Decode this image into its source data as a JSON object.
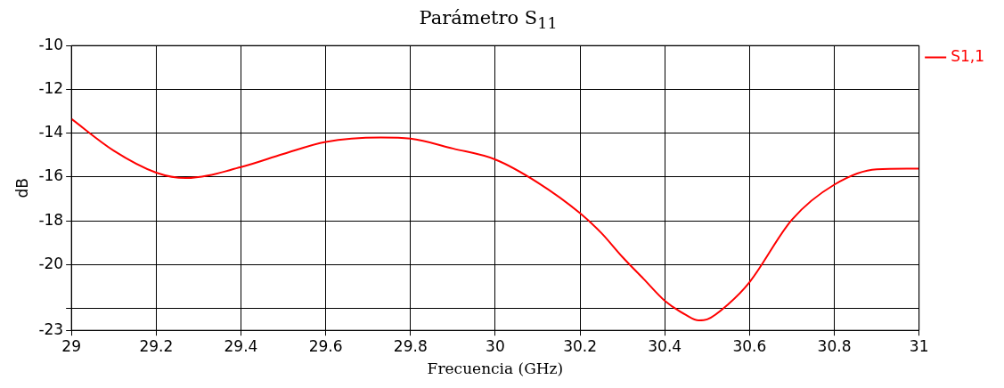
{
  "chart_data": {
    "type": "line",
    "title": "Parámetro S$_{11}$",
    "xlabel": "Frecuencia (GHz)",
    "ylabel": "dB",
    "x": [
      29.0,
      29.1,
      29.2,
      29.27,
      29.4,
      29.5,
      29.6,
      29.73,
      29.8,
      29.9,
      30.0,
      30.1,
      30.2,
      30.25,
      30.3,
      30.35,
      30.4,
      30.45,
      30.48,
      30.5,
      30.55,
      30.6,
      30.7,
      30.8,
      30.9,
      31.0
    ],
    "series": [
      {
        "name": "S1,1",
        "color": "#ff0000",
        "values": [
          -13.35,
          -14.8,
          -15.8,
          -16.05,
          -15.55,
          -14.95,
          -14.4,
          -14.2,
          -14.25,
          -14.7,
          -15.2,
          -16.25,
          -17.65,
          -18.55,
          -19.65,
          -20.65,
          -21.65,
          -22.3,
          -22.55,
          -22.5,
          -21.8,
          -20.8,
          -17.95,
          -16.35,
          -15.65,
          -15.62
        ]
      }
    ],
    "xlim": [
      29,
      31
    ],
    "xticks": [
      29,
      29.2,
      29.4,
      29.6,
      29.8,
      30,
      30.2,
      30.4,
      30.6,
      30.8,
      31
    ],
    "ylim": [
      -23,
      -10
    ],
    "yticks": [
      -10,
      -12,
      -14,
      -16,
      -18,
      -20,
      {
        "value": -22,
        "label": null
      },
      -23
    ],
    "grid": true,
    "legend": "top right",
    "marker": "none",
    "line_style": "solid"
  }
}
